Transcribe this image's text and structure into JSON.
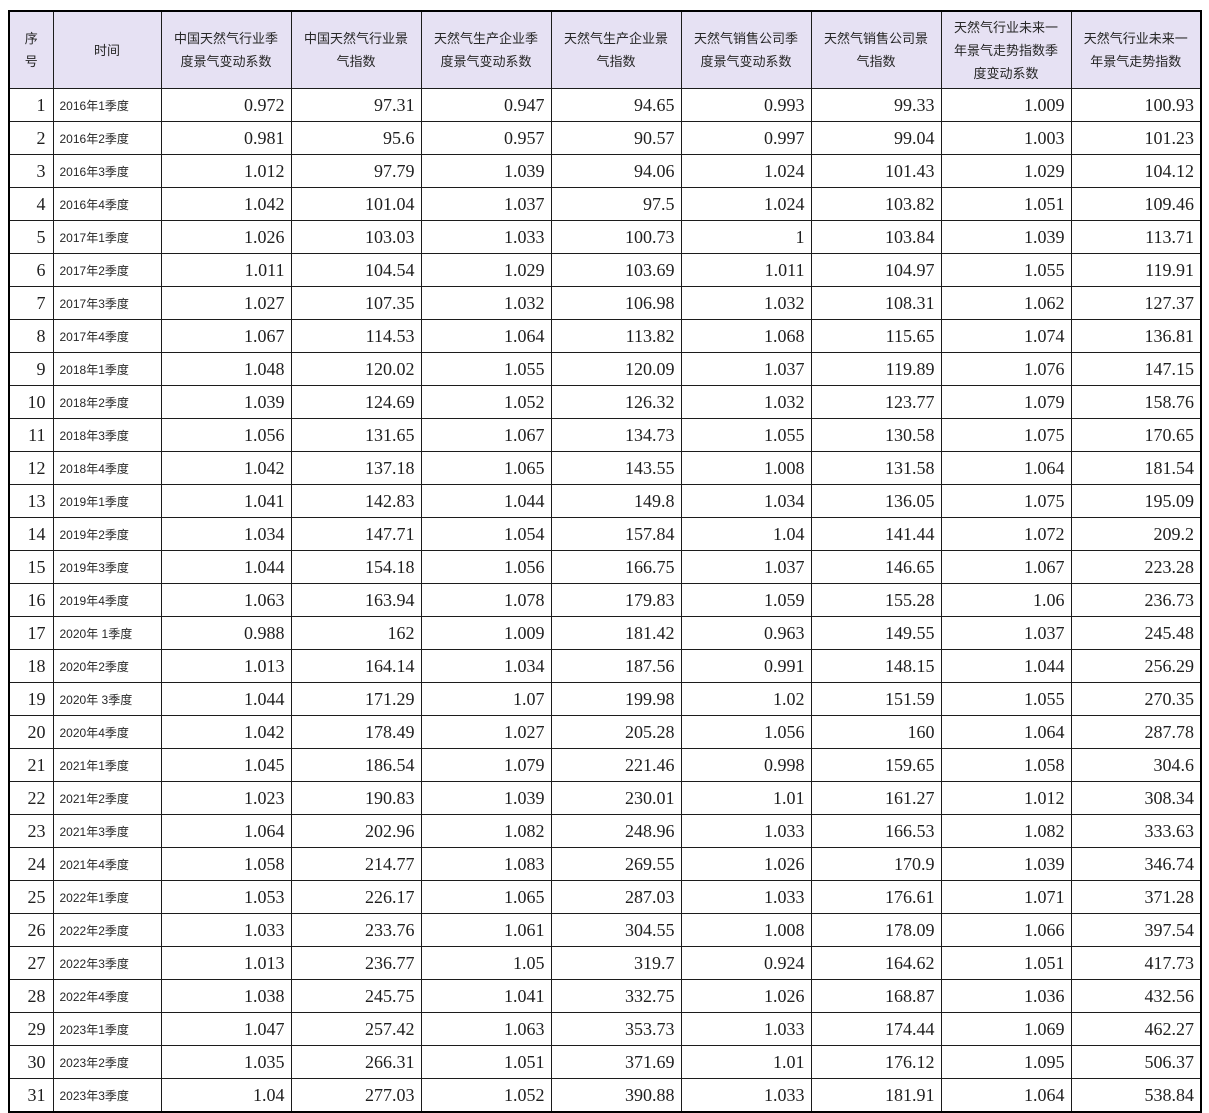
{
  "colors": {
    "header_bg": "#e6e1f3",
    "grid_border": "#1c1c1c",
    "outer_border": "#000000",
    "text": "#1f1f1f",
    "page_bg": "#ffffff"
  },
  "table": {
    "headers": [
      "序号",
      "时间",
      "中国天然气行业季度景气变动系数",
      "中国天然气行业景气指数",
      "天然气生产企业季度景气变动系数",
      "天然气生产企业景气指数",
      "天然气销售公司季度景气变动系数",
      "天然气销售公司景气指数",
      "天然气行业未来一年景气走势指数季度变动系数",
      "天然气行业未来一年景气走势指数"
    ],
    "rows": [
      [
        "1",
        "2016年1季度",
        "0.972",
        "97.31",
        "0.947",
        "94.65",
        "0.993",
        "99.33",
        "1.009",
        "100.93"
      ],
      [
        "2",
        "2016年2季度",
        "0.981",
        "95.6",
        "0.957",
        "90.57",
        "0.997",
        "99.04",
        "1.003",
        "101.23"
      ],
      [
        "3",
        "2016年3季度",
        "1.012",
        "97.79",
        "1.039",
        "94.06",
        "1.024",
        "101.43",
        "1.029",
        "104.12"
      ],
      [
        "4",
        "2016年4季度",
        "1.042",
        "101.04",
        "1.037",
        "97.5",
        "1.024",
        "103.82",
        "1.051",
        "109.46"
      ],
      [
        "5",
        "2017年1季度",
        "1.026",
        "103.03",
        "1.033",
        "100.73",
        "1",
        "103.84",
        "1.039",
        "113.71"
      ],
      [
        "6",
        "2017年2季度",
        "1.011",
        "104.54",
        "1.029",
        "103.69",
        "1.011",
        "104.97",
        "1.055",
        "119.91"
      ],
      [
        "7",
        "2017年3季度",
        "1.027",
        "107.35",
        "1.032",
        "106.98",
        "1.032",
        "108.31",
        "1.062",
        "127.37"
      ],
      [
        "8",
        "2017年4季度",
        "1.067",
        "114.53",
        "1.064",
        "113.82",
        "1.068",
        "115.65",
        "1.074",
        "136.81"
      ],
      [
        "9",
        "2018年1季度",
        "1.048",
        "120.02",
        "1.055",
        "120.09",
        "1.037",
        "119.89",
        "1.076",
        "147.15"
      ],
      [
        "10",
        "2018年2季度",
        "1.039",
        "124.69",
        "1.052",
        "126.32",
        "1.032",
        "123.77",
        "1.079",
        "158.76"
      ],
      [
        "11",
        "2018年3季度",
        "1.056",
        "131.65",
        "1.067",
        "134.73",
        "1.055",
        "130.58",
        "1.075",
        "170.65"
      ],
      [
        "12",
        "2018年4季度",
        "1.042",
        "137.18",
        "1.065",
        "143.55",
        "1.008",
        "131.58",
        "1.064",
        "181.54"
      ],
      [
        "13",
        "2019年1季度",
        "1.041",
        "142.83",
        "1.044",
        "149.8",
        "1.034",
        "136.05",
        "1.075",
        "195.09"
      ],
      [
        "14",
        "2019年2季度",
        "1.034",
        "147.71",
        "1.054",
        "157.84",
        "1.04",
        "141.44",
        "1.072",
        "209.2"
      ],
      [
        "15",
        "2019年3季度",
        "1.044",
        "154.18",
        "1.056",
        "166.75",
        "1.037",
        "146.65",
        "1.067",
        "223.28"
      ],
      [
        "16",
        "2019年4季度",
        "1.063",
        "163.94",
        "1.078",
        "179.83",
        "1.059",
        "155.28",
        "1.06",
        "236.73"
      ],
      [
        "17",
        "2020年 1季度",
        "0.988",
        "162",
        "1.009",
        "181.42",
        "0.963",
        "149.55",
        "1.037",
        "245.48"
      ],
      [
        "18",
        "2020年2季度",
        "1.013",
        "164.14",
        "1.034",
        "187.56",
        "0.991",
        "148.15",
        "1.044",
        "256.29"
      ],
      [
        "19",
        "2020年 3季度",
        "1.044",
        "171.29",
        "1.07",
        "199.98",
        "1.02",
        "151.59",
        "1.055",
        "270.35"
      ],
      [
        "20",
        "2020年4季度",
        "1.042",
        "178.49",
        "1.027",
        "205.28",
        "1.056",
        "160",
        "1.064",
        "287.78"
      ],
      [
        "21",
        "2021年1季度",
        "1.045",
        "186.54",
        "1.079",
        "221.46",
        "0.998",
        "159.65",
        "1.058",
        "304.6"
      ],
      [
        "22",
        "2021年2季度",
        "1.023",
        "190.83",
        "1.039",
        "230.01",
        "1.01",
        "161.27",
        "1.012",
        "308.34"
      ],
      [
        "23",
        "2021年3季度",
        "1.064",
        "202.96",
        "1.082",
        "248.96",
        "1.033",
        "166.53",
        "1.082",
        "333.63"
      ],
      [
        "24",
        "2021年4季度",
        "1.058",
        "214.77",
        "1.083",
        "269.55",
        "1.026",
        "170.9",
        "1.039",
        "346.74"
      ],
      [
        "25",
        "2022年1季度",
        "1.053",
        "226.17",
        "1.065",
        "287.03",
        "1.033",
        "176.61",
        "1.071",
        "371.28"
      ],
      [
        "26",
        "2022年2季度",
        "1.033",
        "233.76",
        "1.061",
        "304.55",
        "1.008",
        "178.09",
        "1.066",
        "397.54"
      ],
      [
        "27",
        "2022年3季度",
        "1.013",
        "236.77",
        "1.05",
        "319.7",
        "0.924",
        "164.62",
        "1.051",
        "417.73"
      ],
      [
        "28",
        "2022年4季度",
        "1.038",
        "245.75",
        "1.041",
        "332.75",
        "1.026",
        "168.87",
        "1.036",
        "432.56"
      ],
      [
        "29",
        "2023年1季度",
        "1.047",
        "257.42",
        "1.063",
        "353.73",
        "1.033",
        "174.44",
        "1.069",
        "462.27"
      ],
      [
        "30",
        "2023年2季度",
        "1.035",
        "266.31",
        "1.051",
        "371.69",
        "1.01",
        "176.12",
        "1.095",
        "506.37"
      ],
      [
        "31",
        "2023年3季度",
        "1.04",
        "277.03",
        "1.052",
        "390.88",
        "1.033",
        "181.91",
        "1.064",
        "538.84"
      ]
    ]
  }
}
